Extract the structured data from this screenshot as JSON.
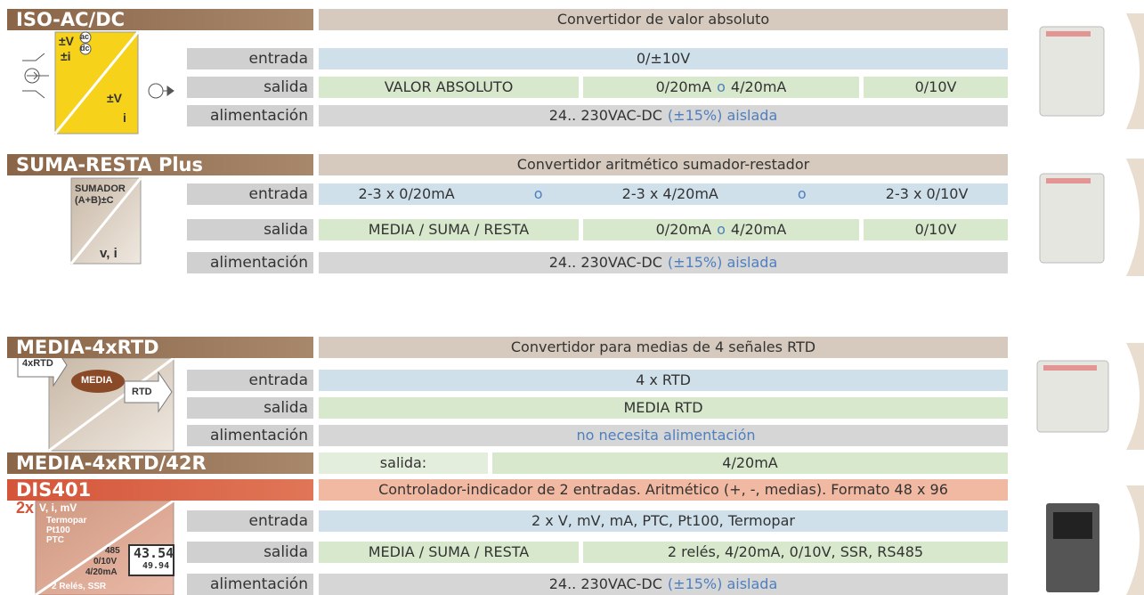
{
  "products": [
    {
      "name": "ISO-AC/DC",
      "description": "Convertidor de valor absoluto",
      "icon": [
        "±V",
        "ac",
        "dc",
        "±i",
        "±V",
        "i"
      ],
      "rows": [
        {
          "label": "entrada",
          "cells": [
            [
              "0/±10V"
            ]
          ]
        },
        {
          "label": "salida",
          "cells": [
            [
              "VALOR ABSOLUTO"
            ],
            [
              "0/20mA",
              "o",
              "4/20mA"
            ],
            [
              "0/10V"
            ]
          ]
        },
        {
          "label": "alimentación",
          "cells": [
            [
              "24.. 230VAC-DC",
              "(±15%) aislada"
            ]
          ]
        }
      ]
    },
    {
      "name": "SUMA-RESTA Plus",
      "description": "Convertidor aritmético sumador-restador",
      "icon": [
        "SUMADOR",
        "(A+B)±C",
        "v, i"
      ],
      "rows": [
        {
          "label": "entrada",
          "cells": [
            [
              "2-3 x 0/20mA",
              "o",
              "2-3 x 4/20mA",
              "o",
              "2-3 x 0/10V"
            ]
          ]
        },
        {
          "label": "salida",
          "cells": [
            [
              "MEDIA / SUMA / RESTA"
            ],
            [
              "0/20mA",
              "o",
              "4/20mA"
            ],
            [
              "0/10V"
            ]
          ]
        },
        {
          "label": "alimentación",
          "cells": [
            [
              "24.. 230VAC-DC",
              "(±15%) aislada"
            ]
          ]
        }
      ]
    },
    {
      "name": "MEDIA-4xRTD",
      "description": "Convertidor para medias de 4 señales RTD",
      "icon": [
        "4xRTD",
        "MEDIA",
        "RTD"
      ],
      "rows": [
        {
          "label": "entrada",
          "cells": [
            [
              "4 x RTD"
            ]
          ]
        },
        {
          "label": "salida",
          "cells": [
            [
              "MEDIA RTD"
            ]
          ]
        },
        {
          "label": "alimentación",
          "cells": [
            [
              "",
              "no necesita alimentación"
            ]
          ]
        }
      ],
      "variant": {
        "name": "MEDIA-4xRTD/42R",
        "label": "salida:",
        "value": "4/20mA"
      }
    },
    {
      "name": "DIS401",
      "description": "Controlador-indicador de 2 entradas. Aritmético (+, -, medias). Formato 48 x 96",
      "icon": [
        "2x",
        "V, i, mV",
        "Termopar",
        "Pt100",
        "PTC",
        "485",
        "0/10V",
        "4/20mA",
        "2 Relés, SSR",
        "43.54",
        "49.94"
      ],
      "rows": [
        {
          "label": "entrada",
          "cells": [
            [
              "2 x V, mV, mA, PTC, Pt100, Termopar"
            ]
          ]
        },
        {
          "label": "salida",
          "cells": [
            [
              "MEDIA / SUMA / RESTA"
            ],
            [
              "2 relés, 4/20mA, 0/10V, SSR, RS485"
            ]
          ]
        },
        {
          "label": "alimentación",
          "cells": [
            [
              "24.. 230VAC-DC",
              "(±15%) aislada"
            ]
          ]
        }
      ]
    }
  ]
}
